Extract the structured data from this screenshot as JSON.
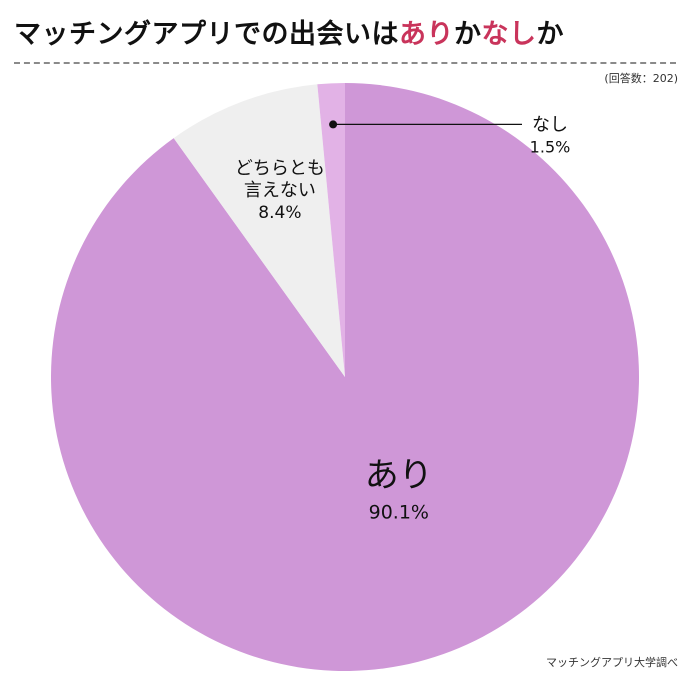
{
  "title": {
    "part1": "マッチングアプリでの出会いは",
    "part2": "あり",
    "part3": "か",
    "part4": "なし",
    "part5": "か",
    "highlight_color": "#c9345b"
  },
  "sample_note": "(回答数：202)",
  "source": "マッチングアプリ大学調べ",
  "chart_data": {
    "type": "pie",
    "slices": [
      {
        "label": "あり",
        "value": 90.1,
        "value_label": "90.1%",
        "color": "#cf97d7"
      },
      {
        "label": "どちらとも言えない",
        "label_lines": [
          "どちらとも",
          "言えない"
        ],
        "value": 8.4,
        "value_label": "8.4%",
        "color": "#efefef"
      },
      {
        "label": "なし",
        "value": 1.5,
        "value_label": "1.5%",
        "color": "#e2b2e6"
      }
    ]
  }
}
